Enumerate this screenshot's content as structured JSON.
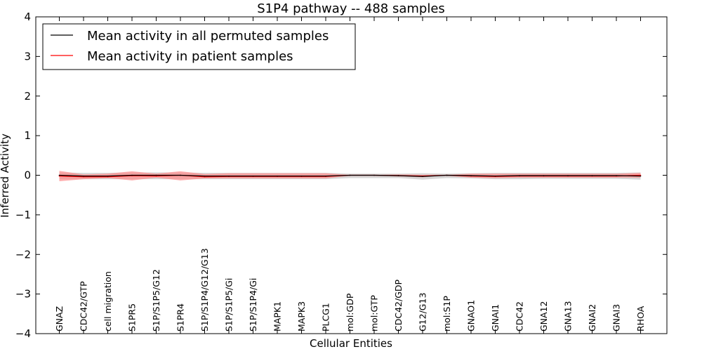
{
  "chart_data": {
    "type": "line",
    "title": "S1P4 pathway -- 488 samples",
    "xlabel": "Cellular Entities",
    "ylabel": "Inferred Activity",
    "ylim": [
      -4,
      4
    ],
    "yticks": [
      -4,
      -3,
      -2,
      -1,
      0,
      1,
      2,
      3,
      4
    ],
    "ytick_labels": [
      "−4",
      "−3",
      "−2",
      "−1",
      "0",
      "1",
      "2",
      "3",
      "4"
    ],
    "categories": [
      "GNAZ",
      "CDC42/GTP",
      "cell migration",
      "S1PR5",
      "S1P/S1P5/G12",
      "S1PR4",
      "S1P/S1P4/G12/G13",
      "S1P/S1P5/Gi",
      "S1P/S1P4/Gi",
      "MAPK1",
      "MAPK3",
      "PLCG1",
      "mol:GDP",
      "mol:GTP",
      "CDC42/GDP",
      "G12/G13",
      "mol:S1P",
      "GNAO1",
      "GNAI1",
      "CDC42",
      "GNA12",
      "GNA13",
      "GNAI2",
      "GNAI3",
      "RHOA"
    ],
    "legend_position": "top-left",
    "series": [
      {
        "name": "Mean activity in all permuted samples",
        "color": "#000000",
        "values": [
          0,
          -0.02,
          -0.02,
          0,
          0,
          0,
          -0.02,
          -0.02,
          -0.02,
          -0.02,
          -0.02,
          -0.02,
          0,
          0,
          -0.01,
          -0.03,
          0,
          -0.01,
          -0.02,
          -0.01,
          -0.01,
          -0.01,
          -0.01,
          -0.01,
          -0.02
        ],
        "band_lower": [
          -0.1,
          -0.1,
          -0.1,
          -0.1,
          -0.1,
          -0.1,
          -0.1,
          -0.1,
          -0.1,
          -0.1,
          -0.1,
          -0.1,
          -0.07,
          -0.07,
          -0.07,
          -0.11,
          -0.07,
          -0.08,
          -0.1,
          -0.1,
          -0.09,
          -0.09,
          -0.09,
          -0.09,
          -0.11
        ],
        "band_upper": [
          0.07,
          0.06,
          0.06,
          0.07,
          0.07,
          0.07,
          0.06,
          0.06,
          0.06,
          0.06,
          0.06,
          0.06,
          0.04,
          0.04,
          0.04,
          0.05,
          0.04,
          0.05,
          0.06,
          0.06,
          0.06,
          0.06,
          0.06,
          0.06,
          0.07
        ],
        "band_color": "#bbbbbb"
      },
      {
        "name": "Mean activity in patient samples",
        "color": "#ff0000",
        "values": [
          -0.02,
          -0.04,
          -0.04,
          -0.01,
          -0.02,
          0,
          -0.04,
          -0.03,
          -0.03,
          -0.03,
          -0.03,
          -0.03,
          0,
          0,
          -0.01,
          -0.02,
          0,
          -0.02,
          -0.03,
          -0.02,
          -0.02,
          -0.02,
          -0.02,
          -0.02,
          0
        ],
        "band_lower": [
          -0.15,
          -0.1,
          -0.07,
          -0.13,
          -0.06,
          -0.13,
          -0.08,
          -0.08,
          -0.08,
          -0.08,
          -0.08,
          -0.08,
          -0.01,
          -0.01,
          -0.03,
          -0.05,
          -0.01,
          -0.06,
          -0.07,
          -0.06,
          -0.06,
          -0.06,
          -0.06,
          -0.06,
          -0.06
        ],
        "band_upper": [
          0.11,
          0.02,
          0.04,
          0.1,
          0.04,
          0.1,
          0.03,
          0.05,
          0.05,
          0.05,
          0.05,
          0.05,
          0.01,
          0.01,
          0.02,
          0.01,
          0.01,
          0.04,
          0.04,
          0.04,
          0.04,
          0.04,
          0.04,
          0.04,
          0.06
        ],
        "band_color": "#ff8a8a"
      }
    ]
  }
}
